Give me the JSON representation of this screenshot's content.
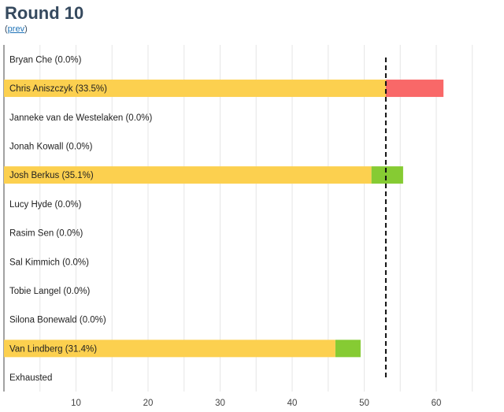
{
  "page": {
    "title": "Round 10",
    "prev_open": "(",
    "prev_link": "prev",
    "prev_close": ")"
  },
  "colors": {
    "base": "#fcd04f",
    "gain": "#86cb33",
    "loss": "#f96868",
    "grid": "#e6e6e6",
    "threshold": "#111111",
    "text": "#222222"
  },
  "chart_data": {
    "type": "bar",
    "orientation": "horizontal",
    "stacked": true,
    "categories": [
      "Bryan Che (0.0%)",
      "Chris Aniszczyk (33.5%)",
      "Janneke van de Westelaken (0.0%)",
      "Jonah Kowall (0.0%)",
      "Josh Berkus (35.1%)",
      "Lucy Hyde (0.0%)",
      "Rasim Sen (0.0%)",
      "Sal Kimmich (0.0%)",
      "Tobie Langel (0.0%)",
      "Silona Bonewald (0.0%)",
      "Van Lindberg (31.4%)",
      "Exhausted"
    ],
    "series": [
      {
        "role": "retained",
        "color": "#fcd04f",
        "values": [
          0,
          53,
          0,
          0,
          51,
          0,
          0,
          0,
          0,
          0,
          46,
          0
        ]
      },
      {
        "role": "gained",
        "color": "#86cb33",
        "values": [
          0,
          0,
          0,
          0,
          4.4,
          0,
          0,
          0,
          0,
          0,
          3.5,
          0
        ]
      },
      {
        "role": "lost",
        "color": "#f96868",
        "values": [
          0,
          8,
          0,
          0,
          0,
          0,
          0,
          0,
          0,
          0,
          0,
          0
        ]
      }
    ],
    "x_ticks": [
      10,
      20,
      30,
      40,
      50,
      60
    ],
    "xlim": [
      0,
      70
    ],
    "threshold": 53,
    "grid": true,
    "gridline_step": 5
  }
}
